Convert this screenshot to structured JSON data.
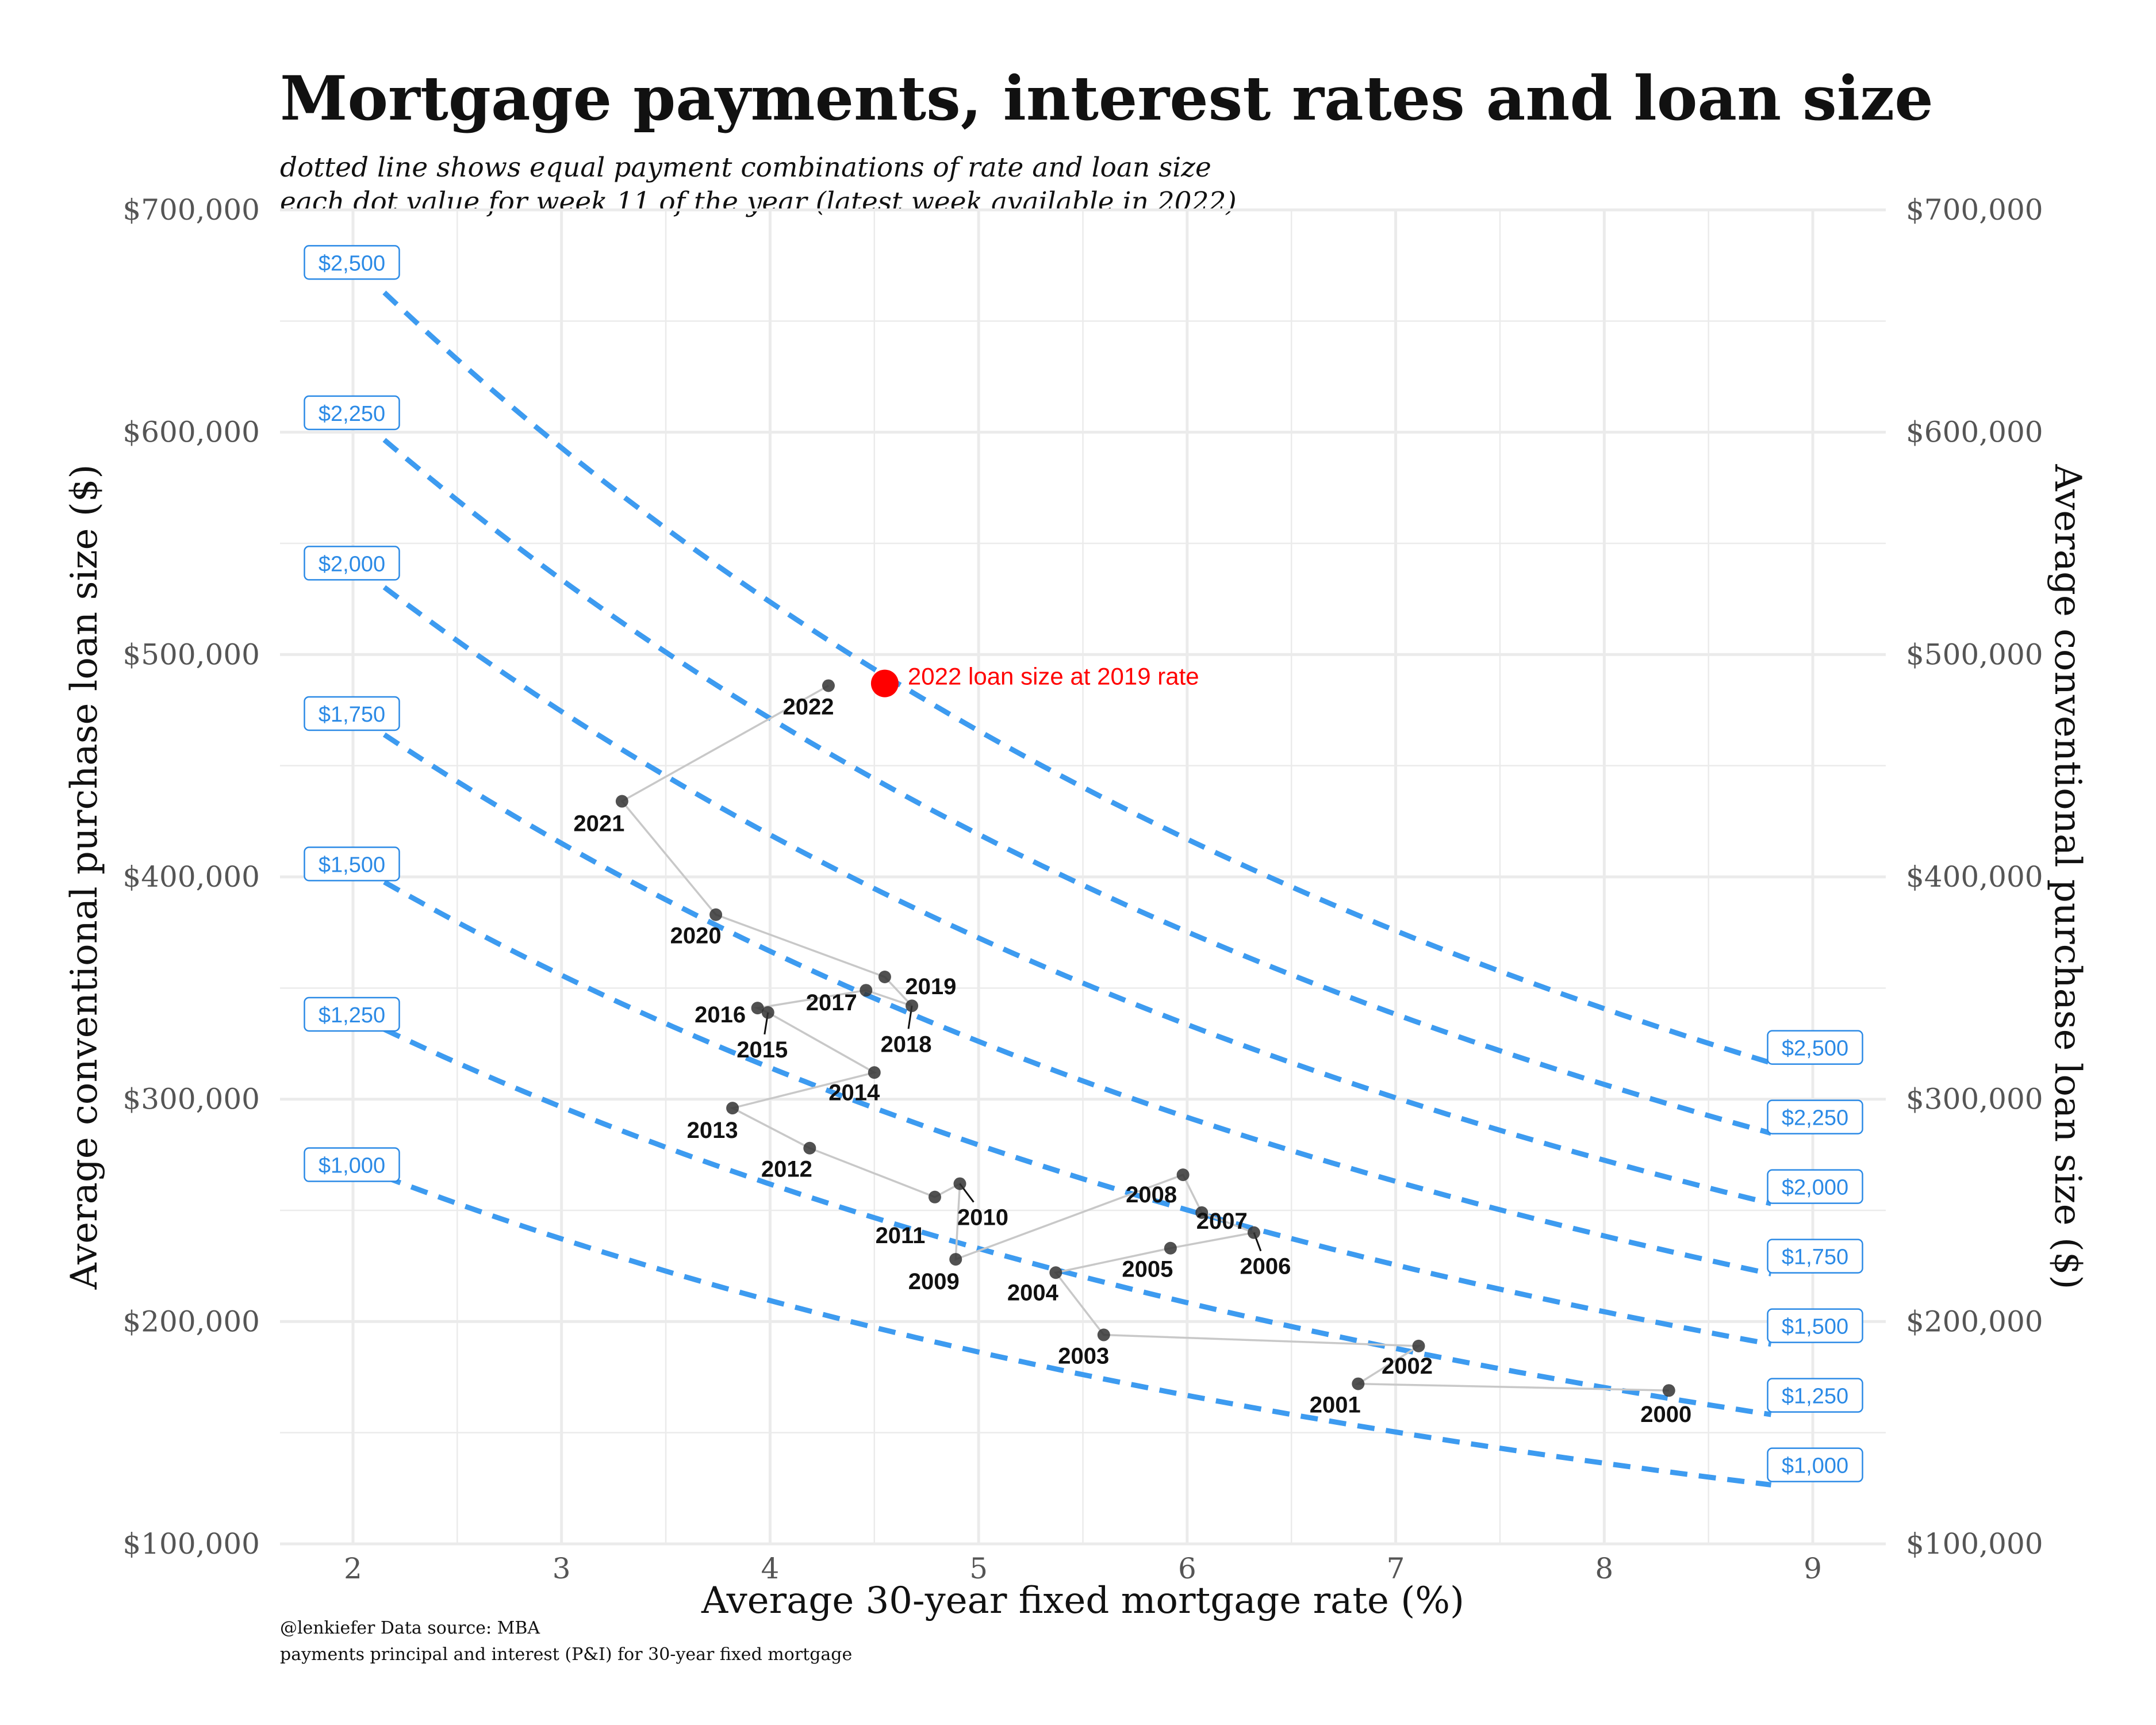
{
  "chart_data": {
    "type": "scatter",
    "title": "Mortgage payments, interest rates and loan size",
    "subtitle": [
      "dotted line shows equal payment combinations of rate and loan size",
      "each dot value for week 11 of the year (latest week available in 2022)"
    ],
    "caption": [
      "@lenkiefer Data source: MBA",
      "payments principal and interest (P&I) for 30-year fixed mortgage"
    ],
    "xlabel": "Average 30-year fixed mortgage rate (%)",
    "ylabel": "Average conventional purchase loan size ($)",
    "ylabel_right": "Average conventional purchase loan size ($)",
    "xlim": [
      1.65,
      9.35
    ],
    "ylim": [
      100000,
      700000
    ],
    "x_ticks": [
      2,
      3,
      4,
      5,
      6,
      7,
      8,
      9
    ],
    "x_tick_labels": [
      "2",
      "3",
      "4",
      "5",
      "6",
      "7",
      "8",
      "9"
    ],
    "y_ticks": [
      100000,
      200000,
      300000,
      400000,
      500000,
      600000,
      700000
    ],
    "y_tick_labels": [
      "$100,000",
      "$200,000",
      "$300,000",
      "$400,000",
      "$500,000",
      "$600,000",
      "$700,000"
    ],
    "grid": true,
    "points": [
      {
        "year": "2000",
        "rate": 8.31,
        "loan": 169000
      },
      {
        "year": "2001",
        "rate": 6.82,
        "loan": 172000
      },
      {
        "year": "2002",
        "rate": 7.11,
        "loan": 189000
      },
      {
        "year": "2003",
        "rate": 5.6,
        "loan": 194000
      },
      {
        "year": "2004",
        "rate": 5.37,
        "loan": 222000
      },
      {
        "year": "2005",
        "rate": 5.92,
        "loan": 233000
      },
      {
        "year": "2006",
        "rate": 6.32,
        "loan": 240000
      },
      {
        "year": "2007",
        "rate": 6.07,
        "loan": 249000
      },
      {
        "year": "2008",
        "rate": 5.98,
        "loan": 266000
      },
      {
        "year": "2009",
        "rate": 4.89,
        "loan": 228000
      },
      {
        "year": "2010",
        "rate": 4.91,
        "loan": 262000
      },
      {
        "year": "2011",
        "rate": 4.79,
        "loan": 256000
      },
      {
        "year": "2012",
        "rate": 4.19,
        "loan": 278000
      },
      {
        "year": "2013",
        "rate": 3.82,
        "loan": 296000
      },
      {
        "year": "2014",
        "rate": 4.5,
        "loan": 312000
      },
      {
        "year": "2015",
        "rate": 3.99,
        "loan": 339000
      },
      {
        "year": "2016",
        "rate": 3.94,
        "loan": 341000
      },
      {
        "year": "2017",
        "rate": 4.46,
        "loan": 349000
      },
      {
        "year": "2018",
        "rate": 4.68,
        "loan": 342000
      },
      {
        "year": "2019",
        "rate": 4.55,
        "loan": 355000
      },
      {
        "year": "2020",
        "rate": 3.74,
        "loan": 383000
      },
      {
        "year": "2021",
        "rate": 3.29,
        "loan": 434000
      },
      {
        "year": "2022",
        "rate": 4.28,
        "loan": 486000
      }
    ],
    "highlight": {
      "label": "2022 loan size at 2019 rate",
      "rate": 4.55,
      "loan": 487000,
      "color": "#ff0000"
    },
    "payment_curves": {
      "payments": [
        1000,
        1250,
        1500,
        1750,
        2000,
        2250,
        2500
      ],
      "labels": [
        "$1,000",
        "$1,250",
        "$1,500",
        "$1,750",
        "$2,000",
        "$2,250",
        "$2,500"
      ],
      "rate_range": [
        2.15,
        8.8
      ],
      "color": "#3d9bf0"
    },
    "point_color": "#333333",
    "path_color": "#c8c8c8"
  }
}
